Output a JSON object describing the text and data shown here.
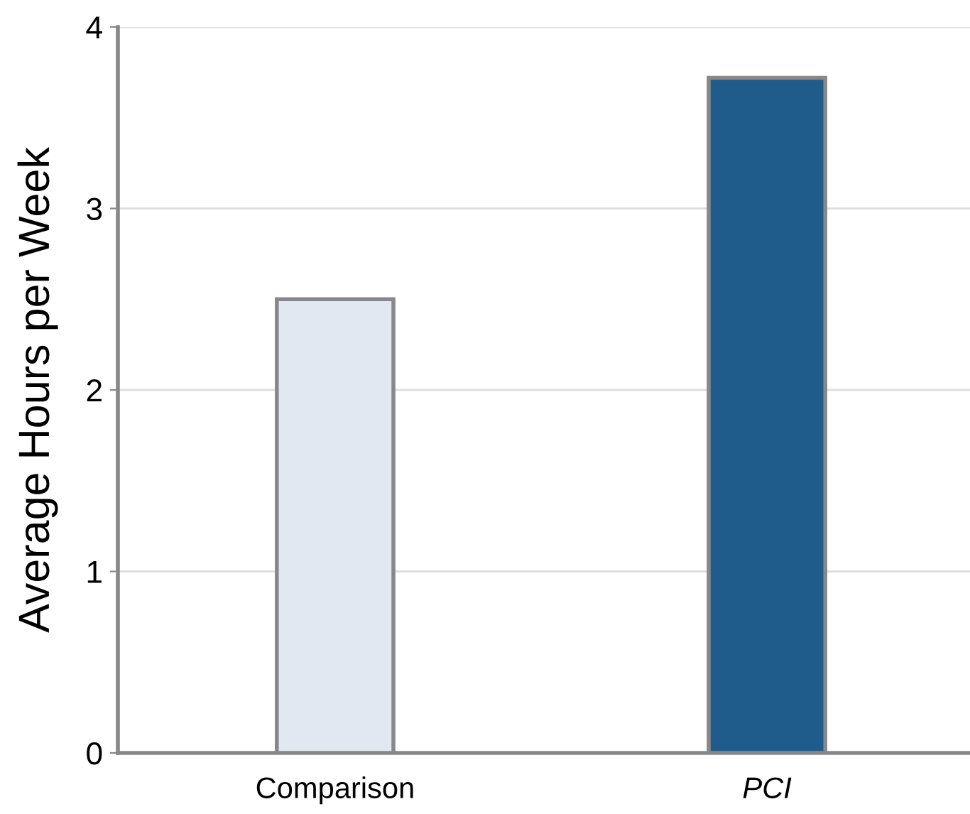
{
  "chart_data": {
    "type": "bar",
    "ylabel": "Average Hours per Week",
    "categories": [
      "Comparison",
      "PCI"
    ],
    "values": [
      2.5,
      3.72
    ],
    "colors": [
      "#e1e8f1",
      "#1f5c8b"
    ],
    "ylim": [
      0,
      4
    ],
    "yticks": [
      0,
      1,
      2,
      3,
      4
    ],
    "grid": "y"
  }
}
